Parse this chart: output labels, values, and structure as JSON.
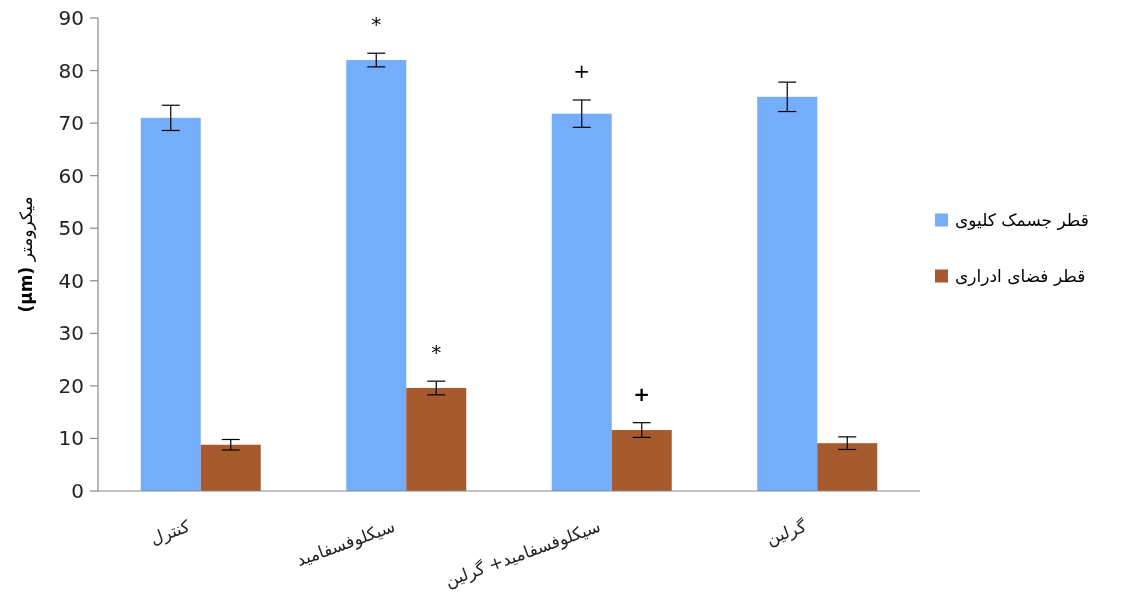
{
  "chart_data": {
    "type": "bar",
    "ylabel": "**(µm)** میکرومتر",
    "categories": [
      "کنترل",
      "سیکلوفسفامید",
      "سیکلوفسفامید+ گرلین",
      "گرلین"
    ],
    "series": [
      {
        "name": "قطر جسمک کلیوی",
        "color": "#74aefa",
        "values": [
          71,
          82,
          71.8,
          75
        ],
        "errors": [
          2.4,
          1.3,
          2.6,
          2.8
        ],
        "value_labels": [
          null,
          "*",
          "+",
          null
        ]
      },
      {
        "name": "قطر فضای ادراری",
        "color": "#a65a2e",
        "values": [
          8.8,
          19.6,
          11.6,
          9.1
        ],
        "errors": [
          1.0,
          1.3,
          1.4,
          1.2
        ],
        "value_labels": [
          null,
          "*",
          "**+**",
          null
        ]
      }
    ],
    "ylim": [
      0,
      90
    ],
    "yticks": [
      0,
      10,
      20,
      30,
      40,
      50,
      60,
      70,
      80,
      90
    ],
    "grid": false,
    "legend": "right"
  }
}
